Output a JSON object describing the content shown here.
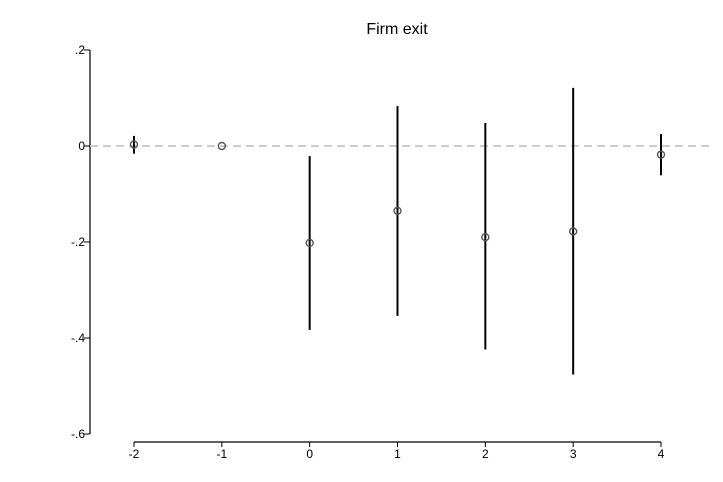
{
  "chart_data": {
    "type": "scatter",
    "title": "Firm exit",
    "xlabel": "",
    "ylabel": "",
    "x": [
      -2,
      -1,
      0,
      1,
      2,
      3,
      4
    ],
    "x_tick_labels": [
      "-2",
      "-1",
      "0",
      "1",
      "2",
      "3",
      "4"
    ],
    "xlim": [
      -2,
      4
    ],
    "ylim": [
      -0.6,
      0.2
    ],
    "y_ticks": [
      0.2,
      0,
      -0.2,
      -0.4,
      -0.6
    ],
    "y_tick_labels": [
      ".2",
      "0",
      "-.2",
      "-.4",
      "-.6"
    ],
    "series": [
      {
        "estimate": [
          0.003,
          0.0,
          -0.202,
          -0.135,
          -0.19,
          -0.178,
          -0.018
        ],
        "ci_lower": [
          -0.016,
          0.0,
          -0.383,
          -0.354,
          -0.424,
          -0.476,
          -0.061
        ],
        "ci_upper": [
          0.021,
          0.0,
          -0.021,
          0.083,
          0.048,
          0.121,
          0.025
        ]
      }
    ],
    "reference_line": {
      "y": 0,
      "style": "dashed"
    },
    "grid": false,
    "legend": "none",
    "colors": {
      "marker": "#555555",
      "ci_line": "#000000",
      "reference_line": "#bbbbbb",
      "axis": "#000000"
    }
  }
}
